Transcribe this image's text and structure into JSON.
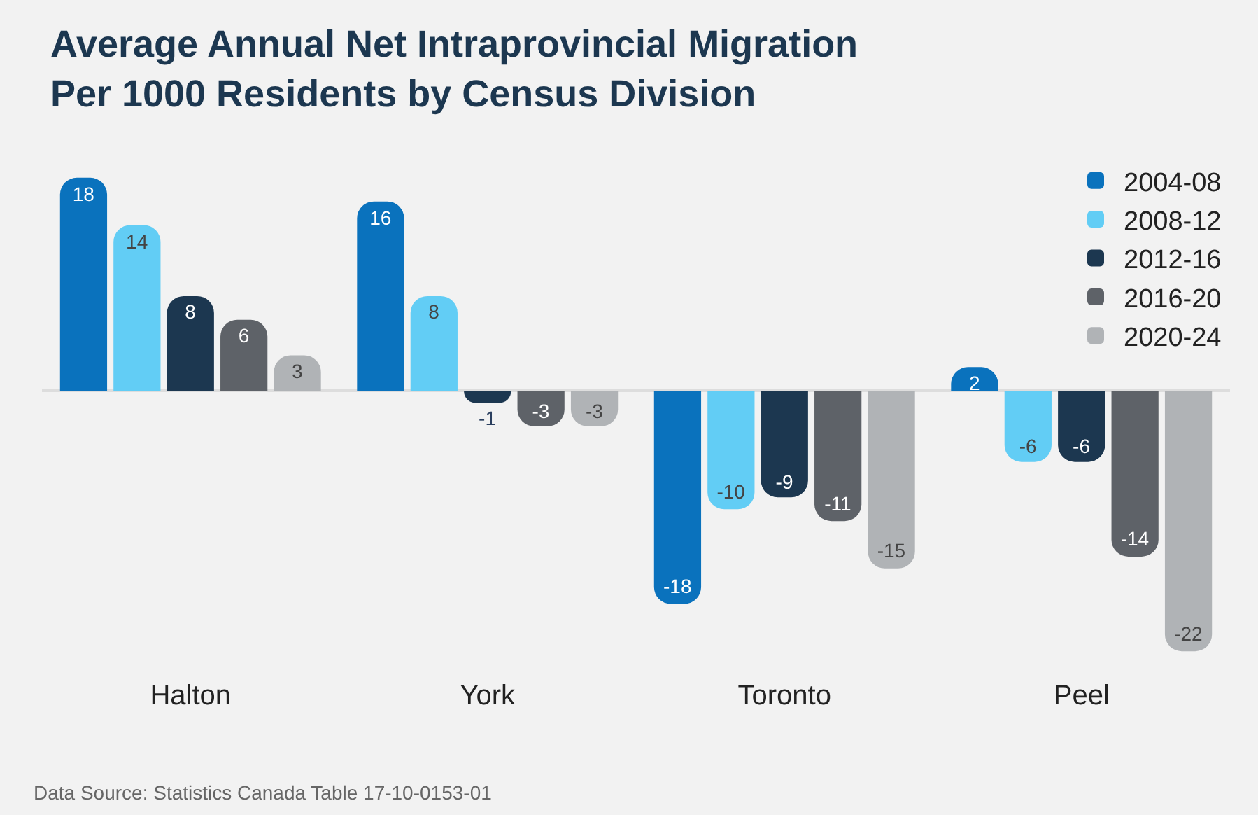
{
  "chart_data": {
    "type": "bar",
    "title": "Average Annual Net Intraprovincial Migration\nPer 1000 Residents by Census Division",
    "categories": [
      "Halton",
      "York",
      "Toronto",
      "Peel"
    ],
    "series": [
      {
        "name": "2004-08",
        "color": "#0a72bd",
        "values": [
          18,
          16,
          -18,
          2
        ]
      },
      {
        "name": "2008-12",
        "color": "#62cdf5",
        "values": [
          14,
          8,
          -10,
          -6
        ]
      },
      {
        "name": "2012-16",
        "color": "#1c3750",
        "values": [
          8,
          -1,
          -9,
          -6
        ]
      },
      {
        "name": "2016-20",
        "color": "#5e6268",
        "values": [
          6,
          -3,
          -11,
          -14
        ]
      },
      {
        "name": "2020-24",
        "color": "#b0b3b6",
        "values": [
          3,
          -3,
          -15,
          -22
        ]
      }
    ],
    "data_labels": true,
    "grid": false,
    "legend": "top right",
    "tick_labels": "x",
    "annotations": [
      "Data Source: Statistics Canada Table 17-10-0153-01"
    ]
  }
}
